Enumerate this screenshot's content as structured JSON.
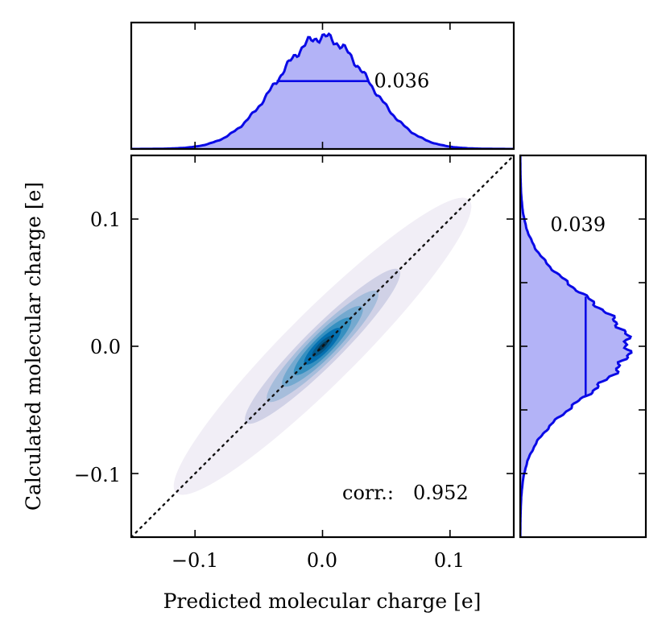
{
  "chart_data": {
    "type": "scatter",
    "subtype": "joint-density-with-marginals",
    "main": {
      "xlabel": "Predicted molecular charge [e]",
      "ylabel": "Calculated molecular charge [e]",
      "xlim": [
        -0.15,
        0.15
      ],
      "ylim": [
        -0.15,
        0.15
      ],
      "x_ticks": [
        -0.1,
        0.0,
        0.1
      ],
      "y_ticks": [
        -0.1,
        0.0,
        0.1
      ],
      "x_tick_labels": [
        "−0.1",
        "0.0",
        "0.1"
      ],
      "y_tick_labels": [
        "−0.1",
        "0.0",
        "0.1"
      ],
      "correlation_label": "corr.:",
      "correlation_value": "0.952",
      "density_center": [
        0.0,
        0.0
      ],
      "density_levels": [
        {
          "level": 1,
          "rx": 0.115,
          "ry": 0.02,
          "color": "#f1eef6"
        },
        {
          "level": 2,
          "rx": 0.06,
          "ry": 0.0105,
          "color": "#d0d1e6"
        },
        {
          "level": 3,
          "rx": 0.043,
          "ry": 0.0085,
          "color": "#a6bddb"
        },
        {
          "level": 4,
          "rx": 0.031,
          "ry": 0.0068,
          "color": "#74a9cf"
        },
        {
          "level": 5,
          "rx": 0.022,
          "ry": 0.0052,
          "color": "#3690c0"
        },
        {
          "level": 6,
          "rx": 0.014,
          "ry": 0.0038,
          "color": "#0570b0"
        },
        {
          "level": 7,
          "rx": 0.008,
          "ry": 0.0024,
          "color": "#045a8d"
        },
        {
          "level": 8,
          "rx": 0.004,
          "ry": 0.0012,
          "color": "#023858"
        }
      ],
      "diagonal": {
        "from": [
          -0.15,
          -0.15
        ],
        "to": [
          0.15,
          0.15
        ],
        "style": "dotted"
      }
    },
    "top_marginal": {
      "axis": "predicted",
      "sigma": 0.036,
      "width_label": "0.036",
      "fill_color": "#b3b3f7",
      "line_color": "#0a0ae6"
    },
    "right_marginal": {
      "axis": "calculated",
      "sigma": 0.039,
      "width_label": "0.039",
      "fill_color": "#b3b3f7",
      "line_color": "#0a0ae6"
    }
  }
}
